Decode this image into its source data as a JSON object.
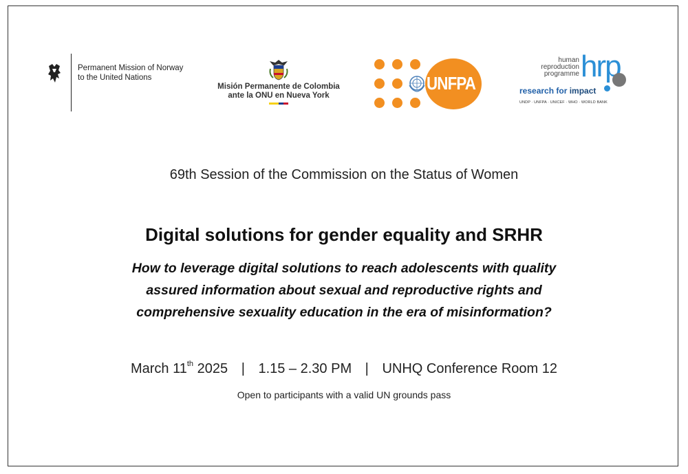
{
  "logos": {
    "norway": {
      "line1": "Permanent Mission of Norway",
      "line2": "to the United Nations",
      "icon": "lion-crest-icon"
    },
    "colombia": {
      "line1": "Misión Permanente de Colombia",
      "line2": "ante la ONU en Nueva York",
      "icon": "colombia-coat-of-arms-icon",
      "flag_colors": [
        "#f7d117",
        "#1d3e8f",
        "#c8102e"
      ]
    },
    "unfpa": {
      "word": "UNFPA",
      "color": "#f28f21",
      "icon": "un-emblem-icon"
    },
    "hrp": {
      "small_line1": "human",
      "small_line2": "reproduction",
      "small_line3": "programme",
      "mark": "hrp",
      "tagline_a": "research for",
      "tagline_b": "impact",
      "partners": "UNDP · UNFPA · UNICEF · WHO · WORLD BANK",
      "color": "#2b8fd6"
    }
  },
  "event": {
    "session": "69th Session of the Commission on the Status of Women",
    "title": "Digital solutions for gender equality and SRHR",
    "subtitle_line1": "How to leverage digital solutions to reach adolescents with quality",
    "subtitle_line2": "assured information about sexual and reproductive rights and",
    "subtitle_line3": "comprehensive sexuality education in the era of misinformation?",
    "date_prefix": "March 11",
    "date_sup": "th",
    "date_year": " 2025",
    "sep": "|",
    "time": "1.15 – 2.30 PM",
    "location": "UNHQ Conference Room 12",
    "access_note": "Open to participants with a valid UN grounds pass"
  }
}
